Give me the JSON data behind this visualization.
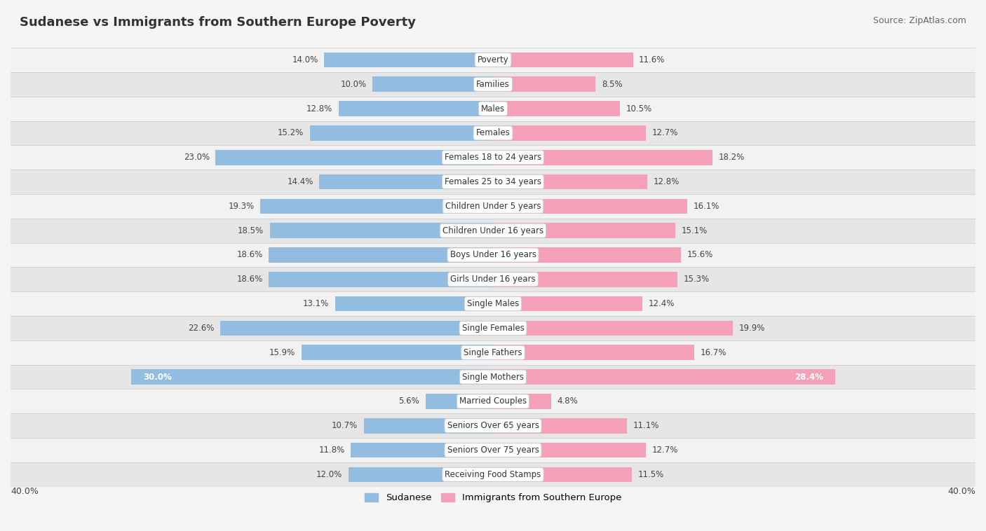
{
  "title": "Sudanese vs Immigrants from Southern Europe Poverty",
  "source": "Source: ZipAtlas.com",
  "categories": [
    "Poverty",
    "Families",
    "Males",
    "Females",
    "Females 18 to 24 years",
    "Females 25 to 34 years",
    "Children Under 5 years",
    "Children Under 16 years",
    "Boys Under 16 years",
    "Girls Under 16 years",
    "Single Males",
    "Single Females",
    "Single Fathers",
    "Single Mothers",
    "Married Couples",
    "Seniors Over 65 years",
    "Seniors Over 75 years",
    "Receiving Food Stamps"
  ],
  "sudanese": [
    14.0,
    10.0,
    12.8,
    15.2,
    23.0,
    14.4,
    19.3,
    18.5,
    18.6,
    18.6,
    13.1,
    22.6,
    15.9,
    30.0,
    5.6,
    10.7,
    11.8,
    12.0
  ],
  "immigrants": [
    11.6,
    8.5,
    10.5,
    12.7,
    18.2,
    12.8,
    16.1,
    15.1,
    15.6,
    15.3,
    12.4,
    19.9,
    16.7,
    28.4,
    4.8,
    11.1,
    12.7,
    11.5
  ],
  "blue_color": "#92bce0",
  "pink_color": "#f4a0b8",
  "xlim": 40.0,
  "bar_height": 0.62,
  "legend_blue": "Sudanese",
  "legend_pink": "Immigrants from Southern Europe",
  "bg_light": "#f2f2f2",
  "bg_dark": "#e6e6e6",
  "title_color": "#333333",
  "source_color": "#666666",
  "value_color": "#444444",
  "label_bg": "#ffffff",
  "title_fontsize": 13,
  "source_fontsize": 9,
  "value_fontsize": 8.5,
  "cat_fontsize": 8.5
}
